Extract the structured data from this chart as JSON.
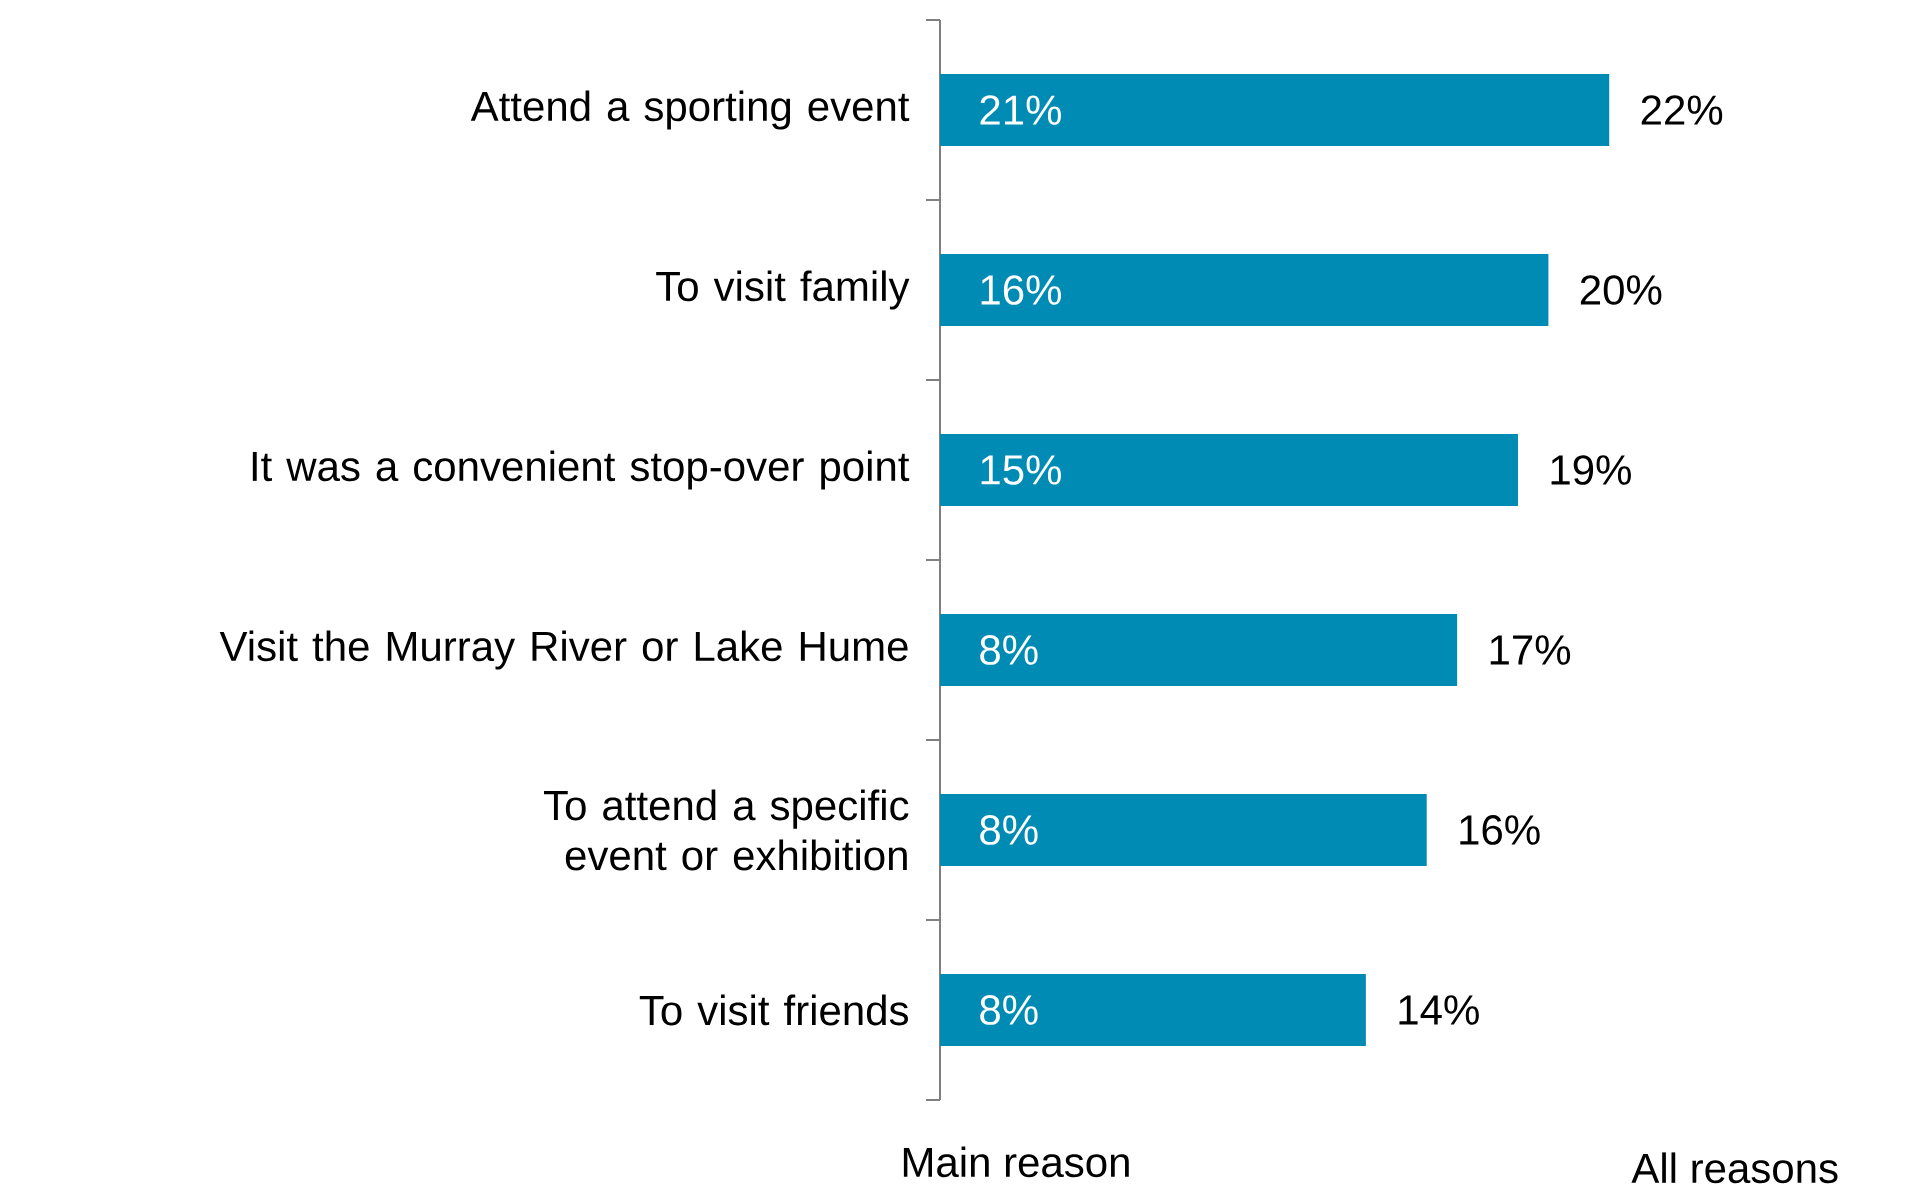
{
  "chart_data": {
    "type": "bar",
    "orientation": "horizontal",
    "categories": [
      "Attend a sporting event",
      "To visit family",
      "It was a convenient stop-over point",
      "Visit the Murray River or Lake Hume",
      "To attend a specific event or exhibition",
      "To visit friends"
    ],
    "series": [
      {
        "color": "#008bb5",
        "values": [
          22,
          20,
          19,
          17,
          16,
          14
        ],
        "value_labels": [
          "22%",
          "20%",
          "19%",
          "17%",
          "16%",
          "14%"
        ]
      }
    ],
    "annotations": [
      "21%",
      "16%",
      "15%",
      "8%",
      "8%",
      "8%",
      "Main reason",
      "All reasons"
    ],
    "tick_labels": "y"
  }
}
